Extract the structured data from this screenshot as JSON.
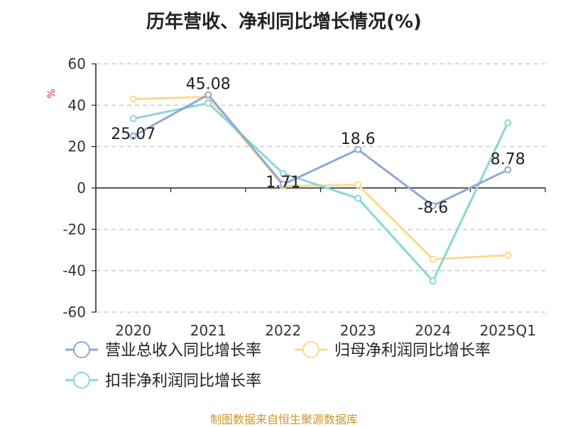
{
  "title": "历年营收、净利同比增长情况(%)",
  "footer": "制图数据来自恒生聚源数据库",
  "colors": {
    "footer": "#c8962e",
    "unit": "#d32f2f",
    "axis": "#222222",
    "grid": "#bdbdbd"
  },
  "chart_data": {
    "type": "line",
    "ylabel": "%",
    "x": [
      "2020",
      "2021",
      "2022",
      "2023",
      "2024",
      "2025Q1"
    ],
    "ylim": [
      -60,
      60
    ],
    "yticks": [
      60,
      40,
      20,
      0,
      -20,
      -40,
      -60
    ],
    "grid": "horizontal dashed",
    "legend_position": "bottom",
    "series": [
      {
        "name": "营业总收入同比增长率",
        "color": "#8fa9d6",
        "values": [
          25.07,
          45.08,
          1.71,
          18.6,
          -8.6,
          8.78
        ],
        "labels": [
          "25.07",
          "45.08",
          "1.71",
          "18.6",
          "-8.6",
          "8.78"
        ]
      },
      {
        "name": "归母净利润同比增长率",
        "color": "#fbd98e",
        "values": [
          43,
          44,
          1,
          1.5,
          -34.5,
          -32.5
        ]
      },
      {
        "name": "扣非净利润同比增长率",
        "color": "#88d8d6",
        "values": [
          33.5,
          41,
          7,
          -5,
          -45,
          31.5
        ]
      }
    ]
  }
}
